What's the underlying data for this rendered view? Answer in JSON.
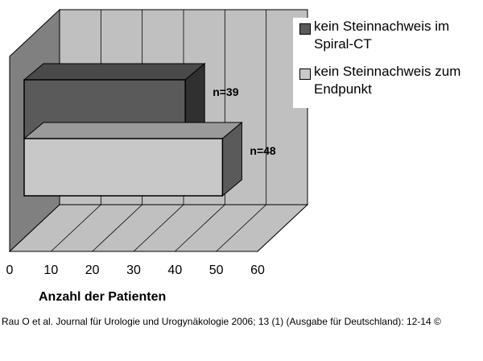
{
  "chart_data": {
    "type": "bar",
    "orientation": "horizontal",
    "style": "3d",
    "xlabel": "Anzahl der Patienten",
    "xlim": [
      0,
      60
    ],
    "xticks": [
      0,
      10,
      20,
      30,
      40,
      50,
      60
    ],
    "grid": true,
    "legend_position": "right",
    "series": [
      {
        "name": "kein Steinnachweis im Spiral-CT",
        "value": 39,
        "data_label": "n=39",
        "color": "#5a5a5a"
      },
      {
        "name": "kein Steinnachweis zum Endpunkt",
        "value": 48,
        "data_label": "n=48",
        "color": "#c8c8c8"
      }
    ],
    "wall_color": "#c0c0c0",
    "side_wall_color": "#808080"
  },
  "legend": {
    "items": [
      {
        "label": "kein Steinnachweis im\nSpiral-CT",
        "color": "#5a5a5a"
      },
      {
        "label": "kein Steinnachweis zum\nEndpunkt",
        "color": "#c8c8c8"
      }
    ]
  },
  "footer": {
    "citation": "Rau O et al. Journal für Urologie und Urogynäkologie 2006; 13 (1) (Ausgabe für Deutschland): 12-14 ©"
  }
}
